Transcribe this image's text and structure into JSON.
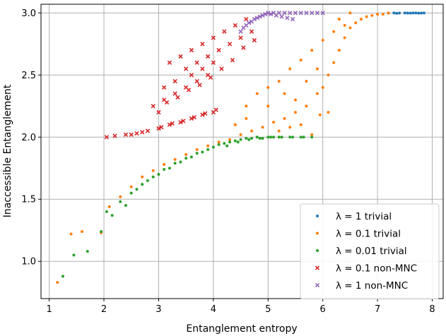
{
  "chart_data": {
    "type": "scatter",
    "xlabel": "Entanglement entropy",
    "ylabel": "Inaccessible Entanglement",
    "xlim": [
      0.85,
      8.2
    ],
    "ylim": [
      0.7,
      3.07
    ],
    "xticks": [
      1,
      2,
      3,
      4,
      5,
      6,
      7,
      8
    ],
    "yticks": [
      1.0,
      1.5,
      2.0,
      2.5,
      3.0
    ],
    "xtick_labels": [
      "1",
      "2",
      "3",
      "4",
      "5",
      "6",
      "7",
      "8"
    ],
    "ytick_labels": [
      "1.0",
      "1.5",
      "2.0",
      "2.5",
      "3.0"
    ],
    "grid": true,
    "legend_position": "lower-right",
    "series": [
      {
        "name": "λ = 1 trivial",
        "marker": "dot",
        "color": "#1f77b4",
        "points": [
          [
            7.2,
            2.998
          ],
          [
            7.3,
            3.0
          ],
          [
            7.4,
            2.999
          ],
          [
            7.5,
            3.0
          ],
          [
            7.6,
            2.998
          ],
          [
            7.7,
            3.0
          ],
          [
            7.8,
            2.999
          ],
          [
            7.85,
            3.0
          ],
          [
            7.35,
            2.997
          ],
          [
            7.55,
            2.999
          ],
          [
            7.65,
            3.0
          ],
          [
            7.75,
            2.998
          ]
        ]
      },
      {
        "name": "λ = 0.1 trivial",
        "marker": "dot",
        "color": "#ff7f0e",
        "points": [
          [
            1.15,
            0.83
          ],
          [
            1.4,
            1.22
          ],
          [
            1.6,
            1.24
          ],
          [
            1.95,
            1.23
          ],
          [
            2.1,
            1.44
          ],
          [
            2.3,
            1.52
          ],
          [
            2.5,
            1.6
          ],
          [
            2.7,
            1.68
          ],
          [
            2.9,
            1.73
          ],
          [
            3.1,
            1.78
          ],
          [
            3.3,
            1.82
          ],
          [
            3.5,
            1.86
          ],
          [
            3.7,
            1.9
          ],
          [
            3.9,
            1.93
          ],
          [
            4.1,
            1.96
          ],
          [
            4.3,
            1.98
          ],
          [
            4.5,
            2.02
          ],
          [
            4.7,
            2.05
          ],
          [
            4.9,
            2.08
          ],
          [
            5.1,
            2.12
          ],
          [
            5.3,
            2.15
          ],
          [
            5.5,
            2.2
          ],
          [
            5.7,
            2.25
          ],
          [
            5.9,
            2.35
          ],
          [
            6.0,
            2.4
          ],
          [
            6.1,
            2.5
          ],
          [
            6.2,
            2.6
          ],
          [
            6.3,
            2.7
          ],
          [
            6.4,
            2.8
          ],
          [
            6.5,
            2.88
          ],
          [
            6.6,
            2.92
          ],
          [
            6.7,
            2.95
          ],
          [
            6.8,
            2.97
          ],
          [
            6.9,
            2.98
          ],
          [
            7.0,
            2.99
          ],
          [
            7.1,
            2.99
          ],
          [
            4.6,
            2.25
          ],
          [
            4.8,
            2.35
          ],
          [
            5.0,
            2.4
          ],
          [
            5.2,
            2.45
          ],
          [
            5.4,
            2.55
          ],
          [
            5.6,
            2.62
          ],
          [
            5.8,
            2.7
          ],
          [
            6.0,
            2.78
          ],
          [
            6.2,
            2.85
          ],
          [
            6.4,
            2.9
          ],
          [
            5.5,
            2.3
          ],
          [
            5.7,
            2.45
          ],
          [
            5.9,
            2.55
          ],
          [
            5.2,
            2.05
          ],
          [
            5.4,
            2.08
          ],
          [
            5.6,
            2.1
          ],
          [
            5.8,
            2.02
          ],
          [
            4.4,
            2.1
          ],
          [
            4.6,
            2.15
          ],
          [
            5.0,
            2.25
          ],
          [
            5.3,
            2.35
          ],
          [
            6.1,
            2.2
          ],
          [
            5.95,
            2.18
          ],
          [
            6.3,
            2.95
          ],
          [
            6.5,
            3.0
          ],
          [
            7.2,
            3.0
          ]
        ]
      },
      {
        "name": "λ = 0.01 trivial",
        "marker": "dot",
        "color": "#2ca02c",
        "points": [
          [
            1.25,
            0.88
          ],
          [
            1.45,
            1.05
          ],
          [
            1.7,
            1.08
          ],
          [
            1.95,
            1.24
          ],
          [
            2.15,
            1.37
          ],
          [
            2.4,
            1.45
          ],
          [
            2.6,
            1.58
          ],
          [
            2.8,
            1.65
          ],
          [
            3.0,
            1.7
          ],
          [
            3.2,
            1.75
          ],
          [
            3.4,
            1.8
          ],
          [
            3.6,
            1.84
          ],
          [
            3.8,
            1.88
          ],
          [
            4.0,
            1.92
          ],
          [
            4.2,
            1.95
          ],
          [
            4.4,
            1.97
          ],
          [
            4.6,
            1.99
          ],
          [
            4.8,
            2.0
          ],
          [
            5.0,
            2.0
          ],
          [
            5.2,
            2.0
          ],
          [
            5.4,
            2.0
          ],
          [
            5.6,
            2.0
          ],
          [
            5.8,
            2.0
          ],
          [
            4.1,
            1.94
          ],
          [
            4.3,
            1.96
          ],
          [
            4.5,
            1.98
          ],
          [
            4.7,
            1.99
          ],
          [
            4.9,
            1.99
          ],
          [
            5.1,
            2.0
          ],
          [
            3.9,
            1.9
          ],
          [
            3.7,
            1.87
          ],
          [
            3.5,
            1.83
          ],
          [
            3.3,
            1.79
          ],
          [
            3.1,
            1.74
          ],
          [
            2.9,
            1.68
          ],
          [
            2.7,
            1.62
          ],
          [
            2.5,
            1.55
          ],
          [
            2.3,
            1.48
          ],
          [
            2.05,
            1.4
          ],
          [
            4.25,
            1.93
          ],
          [
            4.45,
            1.96
          ],
          [
            4.65,
            1.98
          ],
          [
            4.85,
            1.99
          ],
          [
            5.05,
            2.0
          ],
          [
            5.25,
            2.0
          ],
          [
            5.45,
            2.0
          ],
          [
            5.65,
            2.0
          ]
        ]
      },
      {
        "name": "λ = 0.1 non-MNC",
        "marker": "x",
        "color": "#d62728",
        "points": [
          [
            2.05,
            2.0
          ],
          [
            2.2,
            2.01
          ],
          [
            2.4,
            2.02
          ],
          [
            2.6,
            2.03
          ],
          [
            2.8,
            2.05
          ],
          [
            3.0,
            2.07
          ],
          [
            3.2,
            2.1
          ],
          [
            3.4,
            2.12
          ],
          [
            3.6,
            2.15
          ],
          [
            3.8,
            2.18
          ],
          [
            4.0,
            2.2
          ],
          [
            2.9,
            2.25
          ],
          [
            3.1,
            2.3
          ],
          [
            3.3,
            2.35
          ],
          [
            3.5,
            2.4
          ],
          [
            3.7,
            2.45
          ],
          [
            3.9,
            2.5
          ],
          [
            3.2,
            2.6
          ],
          [
            3.4,
            2.65
          ],
          [
            3.6,
            2.7
          ],
          [
            3.8,
            2.75
          ],
          [
            4.0,
            2.8
          ],
          [
            4.2,
            2.85
          ],
          [
            4.4,
            2.9
          ],
          [
            4.6,
            2.95
          ],
          [
            3.5,
            2.55
          ],
          [
            3.7,
            2.6
          ],
          [
            3.9,
            2.65
          ],
          [
            4.1,
            2.7
          ],
          [
            4.3,
            2.75
          ],
          [
            4.5,
            2.8
          ],
          [
            4.7,
            2.85
          ],
          [
            3.0,
            2.2
          ],
          [
            3.15,
            2.28
          ],
          [
            3.35,
            2.32
          ],
          [
            3.55,
            2.38
          ],
          [
            3.75,
            2.42
          ],
          [
            3.95,
            2.48
          ],
          [
            4.15,
            2.55
          ],
          [
            4.35,
            2.62
          ],
          [
            4.55,
            2.72
          ],
          [
            4.75,
            2.78
          ],
          [
            2.5,
            2.02
          ],
          [
            2.7,
            2.04
          ],
          [
            3.05,
            2.08
          ],
          [
            3.25,
            2.11
          ],
          [
            3.45,
            2.13
          ],
          [
            3.65,
            2.16
          ],
          [
            3.85,
            2.19
          ],
          [
            4.05,
            2.22
          ],
          [
            3.3,
            2.45
          ],
          [
            3.1,
            2.4
          ],
          [
            3.6,
            2.5
          ],
          [
            3.8,
            2.55
          ],
          [
            4.0,
            2.6
          ]
        ]
      },
      {
        "name": "λ = 1 non-MNC",
        "marker": "x",
        "color": "#9467bd",
        "points": [
          [
            4.6,
            2.9
          ],
          [
            4.7,
            2.93
          ],
          [
            4.8,
            2.96
          ],
          [
            4.9,
            2.98
          ],
          [
            5.0,
            3.0
          ],
          [
            5.1,
            3.0
          ],
          [
            5.2,
            3.0
          ],
          [
            5.3,
            3.0
          ],
          [
            5.4,
            3.0
          ],
          [
            5.5,
            3.0
          ],
          [
            5.6,
            3.0
          ],
          [
            5.7,
            3.0
          ],
          [
            5.8,
            3.0
          ],
          [
            5.9,
            3.0
          ],
          [
            6.0,
            3.0
          ],
          [
            4.5,
            2.85
          ],
          [
            4.55,
            2.88
          ],
          [
            4.65,
            2.92
          ],
          [
            4.75,
            2.95
          ],
          [
            4.85,
            2.97
          ],
          [
            4.95,
            2.99
          ],
          [
            5.05,
            2.99
          ],
          [
            5.15,
            2.98
          ],
          [
            5.25,
            2.97
          ],
          [
            5.35,
            2.96
          ],
          [
            5.45,
            2.95
          ]
        ]
      }
    ]
  }
}
